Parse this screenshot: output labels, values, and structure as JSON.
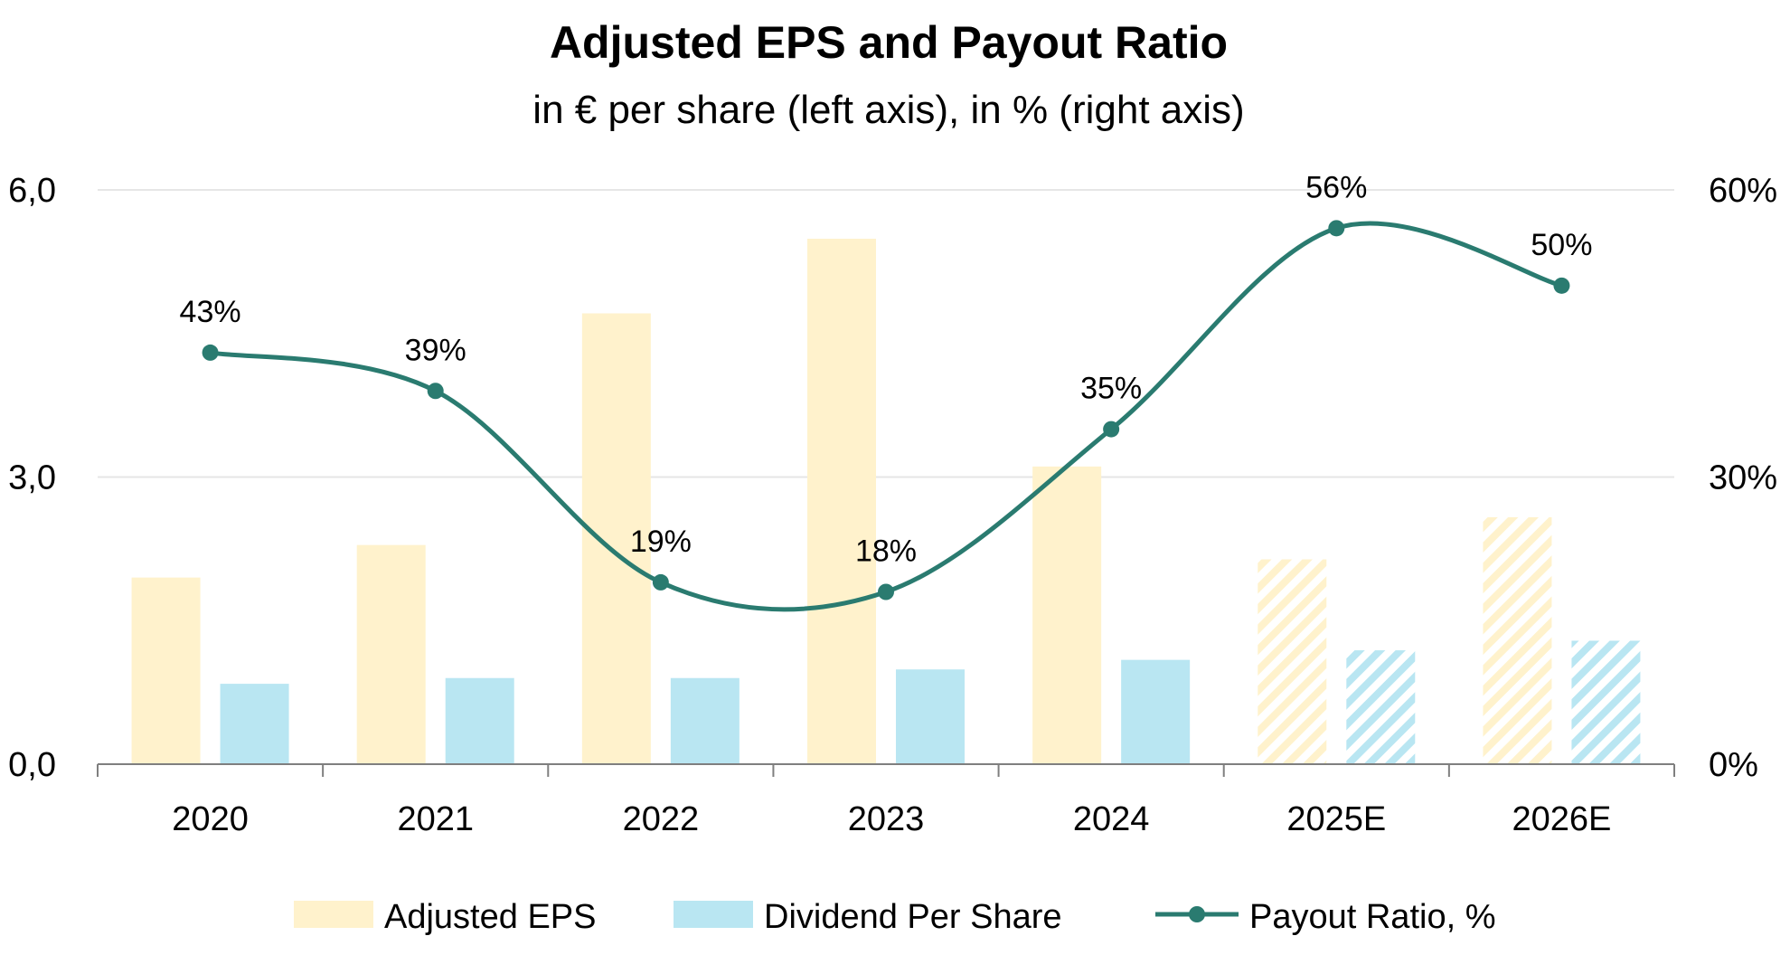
{
  "chart_data": {
    "type": "bar",
    "title": "Adjusted EPS and Payout Ratio",
    "subtitle": "in € per share (left axis), in % (right axis)",
    "categories": [
      "2020",
      "2021",
      "2022",
      "2023",
      "2024",
      "2025E",
      "2026E"
    ],
    "estimated_categories": [
      "2025E",
      "2026E"
    ],
    "series": [
      {
        "name": "Adjusted EPS",
        "type": "bar",
        "axis": "left",
        "color": "#FFF2CC",
        "values": [
          1.95,
          2.29,
          4.71,
          5.49,
          3.11,
          2.14,
          2.58
        ]
      },
      {
        "name": "Dividend Per Share",
        "type": "bar",
        "axis": "left",
        "color": "#B9E6F2",
        "values": [
          0.84,
          0.9,
          0.9,
          0.99,
          1.09,
          1.19,
          1.29
        ]
      },
      {
        "name": "Payout Ratio, %",
        "type": "line",
        "axis": "right",
        "color": "#2A7B70",
        "smooth": true,
        "values": [
          43,
          39,
          19,
          18,
          35,
          56,
          50
        ],
        "labels": [
          "43%",
          "39%",
          "19%",
          "18%",
          "35%",
          "56%",
          "50%"
        ]
      }
    ],
    "y_left": {
      "ticks": [
        "0,0",
        "3,0",
        "6,0"
      ],
      "ylim": [
        0,
        6
      ]
    },
    "y_right": {
      "ticks": [
        "0%",
        "30%",
        "60%"
      ],
      "ylim": [
        0,
        60
      ]
    },
    "grid": true,
    "legend": {
      "position": "bottom",
      "items": [
        "Adjusted EPS",
        "Dividend Per Share",
        "Payout Ratio, %"
      ]
    }
  }
}
